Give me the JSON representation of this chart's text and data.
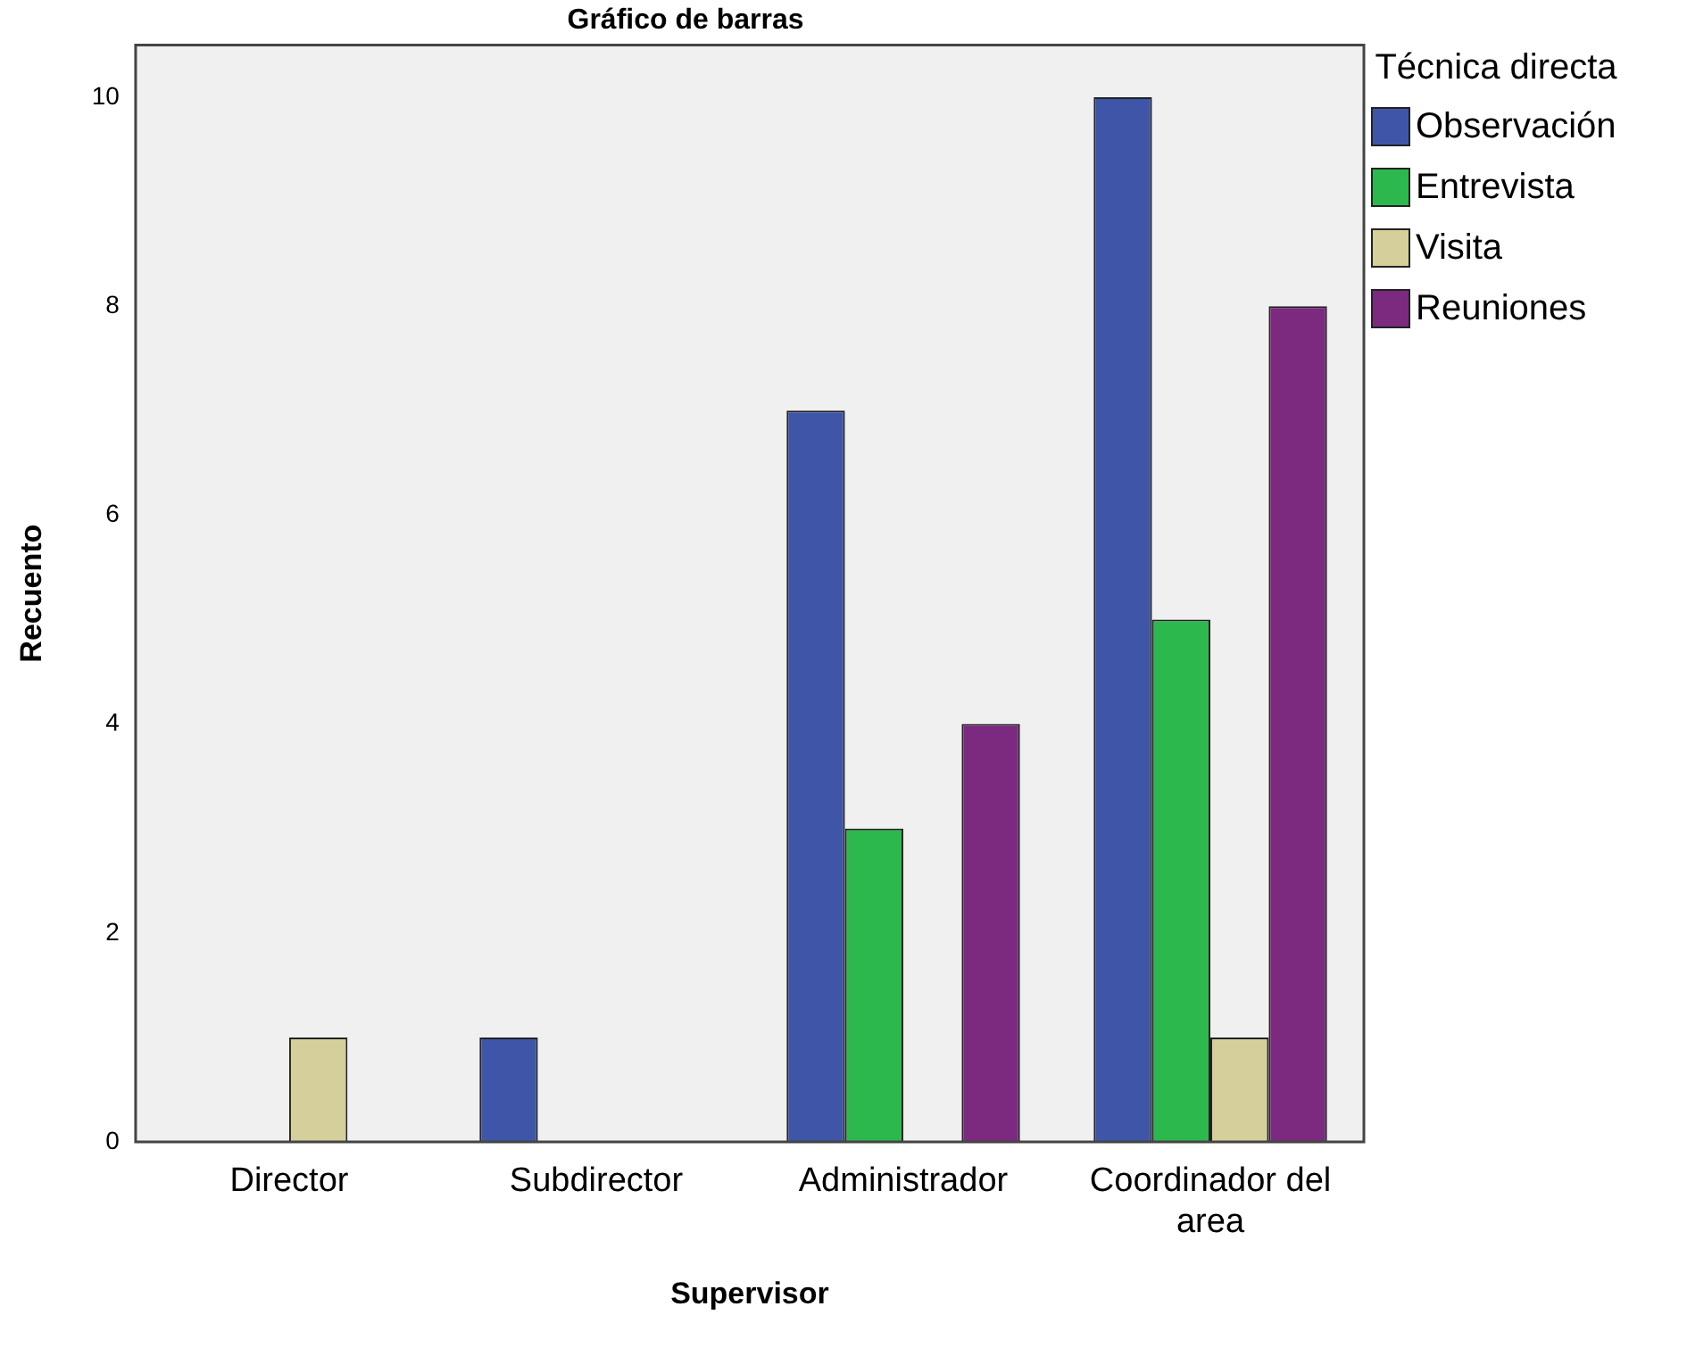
{
  "chart_data": {
    "type": "bar",
    "title": "Gráfico de barras",
    "xlabel": "Supervisor",
    "ylabel": "Recuento",
    "legend_title": "Técnica directa",
    "legend": "right",
    "grid": false,
    "categories": [
      "Director",
      "Subdirector",
      "Administrador",
      "Coordinador del area"
    ],
    "ylim": [
      0,
      10.5
    ],
    "yticks": [
      0,
      2,
      4,
      6,
      8,
      10
    ],
    "series": [
      {
        "name": "Observación",
        "color": "#3f56a8",
        "values": [
          null,
          1,
          7,
          10
        ]
      },
      {
        "name": "Entrevista",
        "color": "#2db84d",
        "values": [
          null,
          null,
          3,
          5
        ]
      },
      {
        "name": "Visita",
        "color": "#d5cf9b",
        "values": [
          1,
          null,
          null,
          1
        ]
      },
      {
        "name": "Reuniones",
        "color": "#7b2a7f",
        "values": [
          null,
          null,
          4,
          8
        ]
      }
    ]
  }
}
